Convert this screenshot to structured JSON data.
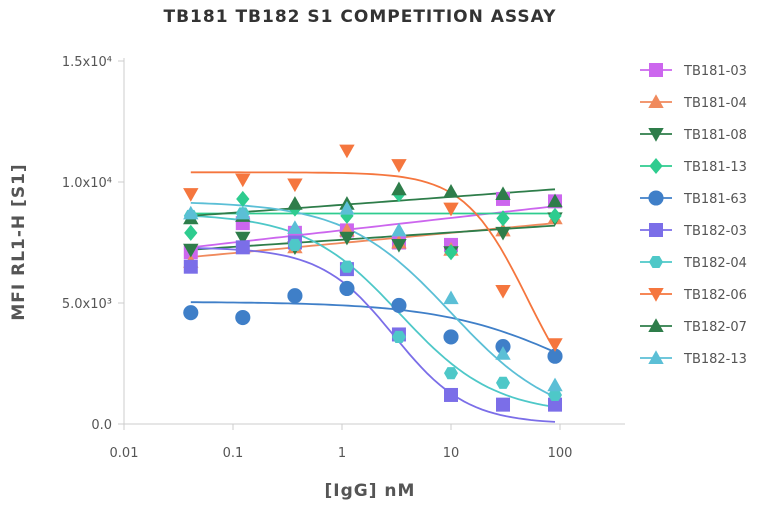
{
  "chart_data": {
    "type": "scatter",
    "title": "TB181 TB182 S1 COMPETITION ASSAY",
    "xlabel": "[IgG] nM",
    "ylabel": "MFI RL1-H [S1]",
    "x_scale": "log",
    "xlim": [
      0.01,
      100
    ],
    "ylim": [
      0,
      15000
    ],
    "x_ticks": [
      {
        "value": 0.01,
        "label": "0.01"
      },
      {
        "value": 0.1,
        "label": "0.1"
      },
      {
        "value": 1,
        "label": "1"
      },
      {
        "value": 10,
        "label": "10"
      },
      {
        "value": 100,
        "label": "100"
      }
    ],
    "y_ticks": [
      {
        "value": 0,
        "label": "0.0"
      },
      {
        "value": 5000,
        "label": "5.0x10³"
      },
      {
        "value": 10000,
        "label": "1.0x10⁴"
      },
      {
        "value": 15000,
        "label": "1.5x10⁴"
      }
    ],
    "grid": false,
    "legend_position": "right",
    "x": [
      0.041,
      0.123,
      0.37,
      1.11,
      3.33,
      10,
      30,
      90
    ],
    "series": [
      {
        "name": "TB181-03",
        "color": "#cc66ee",
        "marker": "square",
        "values": [
          7100,
          8300,
          7900,
          8000,
          7500,
          7400,
          9300,
          9200
        ],
        "fit": {
          "type": "line",
          "y_start": 7300,
          "y_end": 9000
        }
      },
      {
        "name": "TB181-04",
        "color": "#f08a5d",
        "marker": "triangle-up",
        "values": [
          6700,
          7300,
          7300,
          8000,
          7500,
          7200,
          8000,
          8500
        ],
        "fit": {
          "type": "line",
          "y_start": 6900,
          "y_end": 8300
        }
      },
      {
        "name": "TB181-08",
        "color": "#2e7d4a",
        "marker": "triangle-down",
        "values": [
          7200,
          7700,
          7300,
          7700,
          7400,
          7100,
          7900,
          8500
        ],
        "fit": {
          "type": "line",
          "y_start": 7200,
          "y_end": 8200
        }
      },
      {
        "name": "TB181-13",
        "color": "#2ecc8f",
        "marker": "diamond",
        "values": [
          7900,
          9300,
          8900,
          8600,
          9500,
          7100,
          8500,
          8600
        ],
        "fit": {
          "type": "line",
          "y_start": 8700,
          "y_end": 8700
        }
      },
      {
        "name": "TB181-63",
        "color": "#3f7fc8",
        "marker": "circle",
        "values": [
          4600,
          4400,
          5300,
          5600,
          4900,
          3600,
          3200,
          2800
        ],
        "fit": {
          "type": "sigmoid",
          "top": 5050,
          "bottom": 0,
          "ec50": 150,
          "hill": 0.7
        }
      },
      {
        "name": "TB182-03",
        "color": "#7b6ee8",
        "marker": "square",
        "values": [
          6500,
          7300,
          7500,
          6400,
          3700,
          1200,
          800,
          800
        ],
        "fit": {
          "type": "sigmoid",
          "top": 7300,
          "bottom": 0,
          "ec50": 3.0,
          "hill": 1.3
        }
      },
      {
        "name": "TB182-04",
        "color": "#4ec8c8",
        "marker": "hexagon",
        "values": [
          8600,
          8700,
          7400,
          6500,
          3600,
          2100,
          1700,
          1200
        ],
        "fit": {
          "type": "sigmoid",
          "top": 8700,
          "bottom": 400,
          "ec50": 3.4,
          "hill": 1.0
        }
      },
      {
        "name": "TB182-06",
        "color": "#f5763e",
        "marker": "triangle-down",
        "values": [
          9500,
          10100,
          9900,
          11300,
          10700,
          8900,
          5500,
          3300
        ],
        "fit": {
          "type": "sigmoid",
          "top": 10400,
          "bottom": 0,
          "ec50": 50,
          "hill": 1.5
        }
      },
      {
        "name": "TB182-07",
        "color": "#2e7d4a",
        "marker": "triangle-up",
        "values": [
          8500,
          8600,
          9100,
          9100,
          9700,
          9600,
          9500,
          9200
        ],
        "fit": {
          "type": "line",
          "y_start": 8600,
          "y_end": 9700
        }
      },
      {
        "name": "TB182-13",
        "color": "#5bbfd6",
        "marker": "triangle-up",
        "values": [
          8700,
          8700,
          8100,
          8900,
          8000,
          5200,
          2900,
          1600
        ],
        "fit": {
          "type": "sigmoid",
          "top": 9200,
          "bottom": 0,
          "ec50": 10,
          "hill": 0.9
        }
      }
    ]
  }
}
